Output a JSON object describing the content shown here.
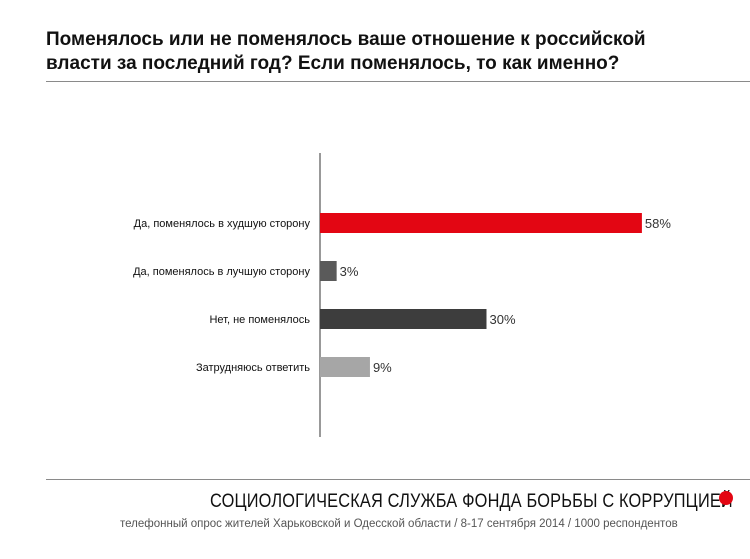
{
  "title": {
    "line1": "Поменялось или не поменялось ваше отношение к российской",
    "line2": "власти за последний год? Если поменялось, то как именно?"
  },
  "chart_data": {
    "type": "bar",
    "orientation": "horizontal",
    "categories": [
      "Да, поменялось в худшую сторону",
      "Да, поменялось в лучшую сторону",
      "Нет, не поменялось",
      "Затрудняюсь ответить"
    ],
    "values": [
      58,
      3,
      30,
      9
    ],
    "value_labels": [
      "58%",
      "3%",
      "30%",
      "9%"
    ],
    "colors": [
      "#e30613",
      "#5a5a5a",
      "#3d3d3d",
      "#a6a6a6"
    ],
    "unit": "%",
    "xlim": [
      0,
      100
    ],
    "grid": false,
    "legend": "none"
  },
  "footer": {
    "organization": "СОЦИОЛОГИЧЕСКАЯ СЛУЖБА ФОНДА БОРЬБЫ С КОРРУПЦИЕЙ",
    "source": "телефонный опрос жителей Харьковской и Одесской области / 8-17 сентября 2014 / 1000 респондентов",
    "accent_color": "#e30613"
  }
}
